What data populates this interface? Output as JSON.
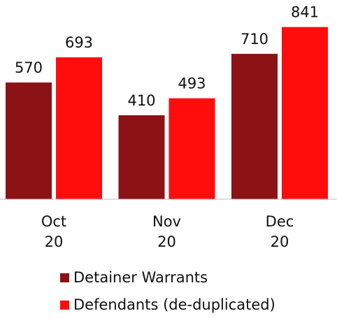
{
  "chart_data": {
    "type": "bar",
    "categories": [
      "Oct 20",
      "Nov 20",
      "Dec 20"
    ],
    "series": [
      {
        "name": "Detainer Warrants",
        "color": "#8b1215",
        "values": [
          570,
          410,
          710
        ]
      },
      {
        "name": "Defendants (de-duplicated)",
        "color": "#ff0d0d",
        "values": [
          693,
          493,
          841
        ]
      }
    ],
    "ylim": [
      0,
      973
    ]
  }
}
